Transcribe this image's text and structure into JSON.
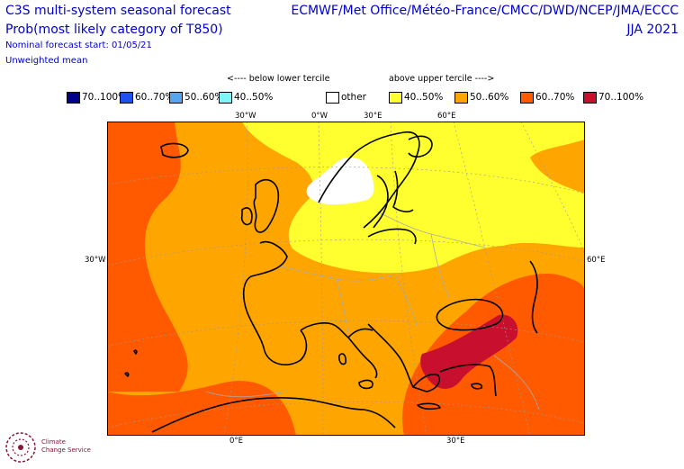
{
  "header": {
    "title": "C3S multi-system seasonal forecast",
    "subtitle": "Prob(most likely category of T850)",
    "forecast_start": "Nominal forecast start: 01/05/21",
    "mean_type": "Unweighted mean",
    "centres": "ECMWF/Met Office/Météo-France/CMCC/DWD/NCEP/JMA/ECCC",
    "season": "JJA 2021"
  },
  "legend": {
    "below_label": "<---- below lower tercile",
    "above_label": "above upper tercile ---->",
    "items": [
      {
        "label": "70..100%",
        "color": "#00008b"
      },
      {
        "label": "60..70%",
        "color": "#2050f0"
      },
      {
        "label": "50..60%",
        "color": "#55a5f0"
      },
      {
        "label": "40..50%",
        "color": "#7ff5f5"
      },
      {
        "label": "other",
        "color": "#ffffff"
      },
      {
        "label": "40..50%",
        "color": "#ffff30"
      },
      {
        "label": "50..60%",
        "color": "#ffa500"
      },
      {
        "label": "60..70%",
        "color": "#ff5a00"
      },
      {
        "label": "70..100%",
        "color": "#c8102e"
      }
    ]
  },
  "map": {
    "lon_top": [
      "30°W",
      "0°W",
      "30°E",
      "60°E"
    ],
    "lon_bottom": [
      "0°E",
      "30°E"
    ],
    "lat_left": "30°W",
    "lat_right": "60°E"
  },
  "logo": {
    "line1": "Climate",
    "line2": "Change Service"
  }
}
